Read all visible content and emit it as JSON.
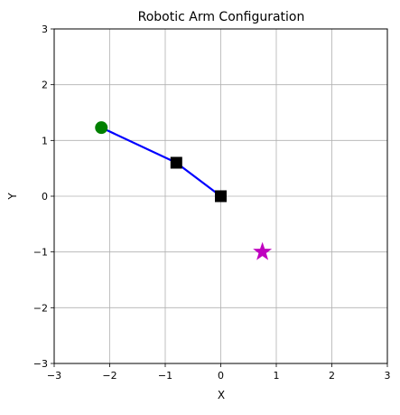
{
  "chart_data": {
    "type": "line",
    "title": "Robotic Arm Configuration",
    "xlabel": "X",
    "ylabel": "Y",
    "xlim": [
      -3,
      3
    ],
    "ylim": [
      -3,
      3
    ],
    "grid": true,
    "x_ticks": [
      -3,
      -2,
      -1,
      0,
      1,
      2,
      3
    ],
    "y_ticks": [
      -3,
      -2,
      -1,
      0,
      1,
      2,
      3
    ],
    "x_tick_labels": [
      "−3",
      "−2",
      "−1",
      "0",
      "1",
      "2",
      "3"
    ],
    "y_tick_labels": [
      "−3",
      "−2",
      "−1",
      "0",
      "1",
      "2",
      "3"
    ],
    "series": [
      {
        "kind": "arm-links",
        "x": [
          0,
          -0.8,
          -2.15
        ],
        "y": [
          0,
          0.6,
          1.23
        ],
        "color": "#0000ff"
      },
      {
        "kind": "joints",
        "marker": "square",
        "x": [
          0,
          -0.8
        ],
        "y": [
          0,
          0.6
        ],
        "color": "#000000"
      },
      {
        "kind": "end-effector",
        "marker": "circle",
        "x": [
          -2.15
        ],
        "y": [
          1.23
        ],
        "color": "#008000"
      },
      {
        "kind": "target",
        "marker": "star",
        "x": [
          0.75
        ],
        "y": [
          -1.0
        ],
        "color": "#bf00bf"
      }
    ]
  }
}
